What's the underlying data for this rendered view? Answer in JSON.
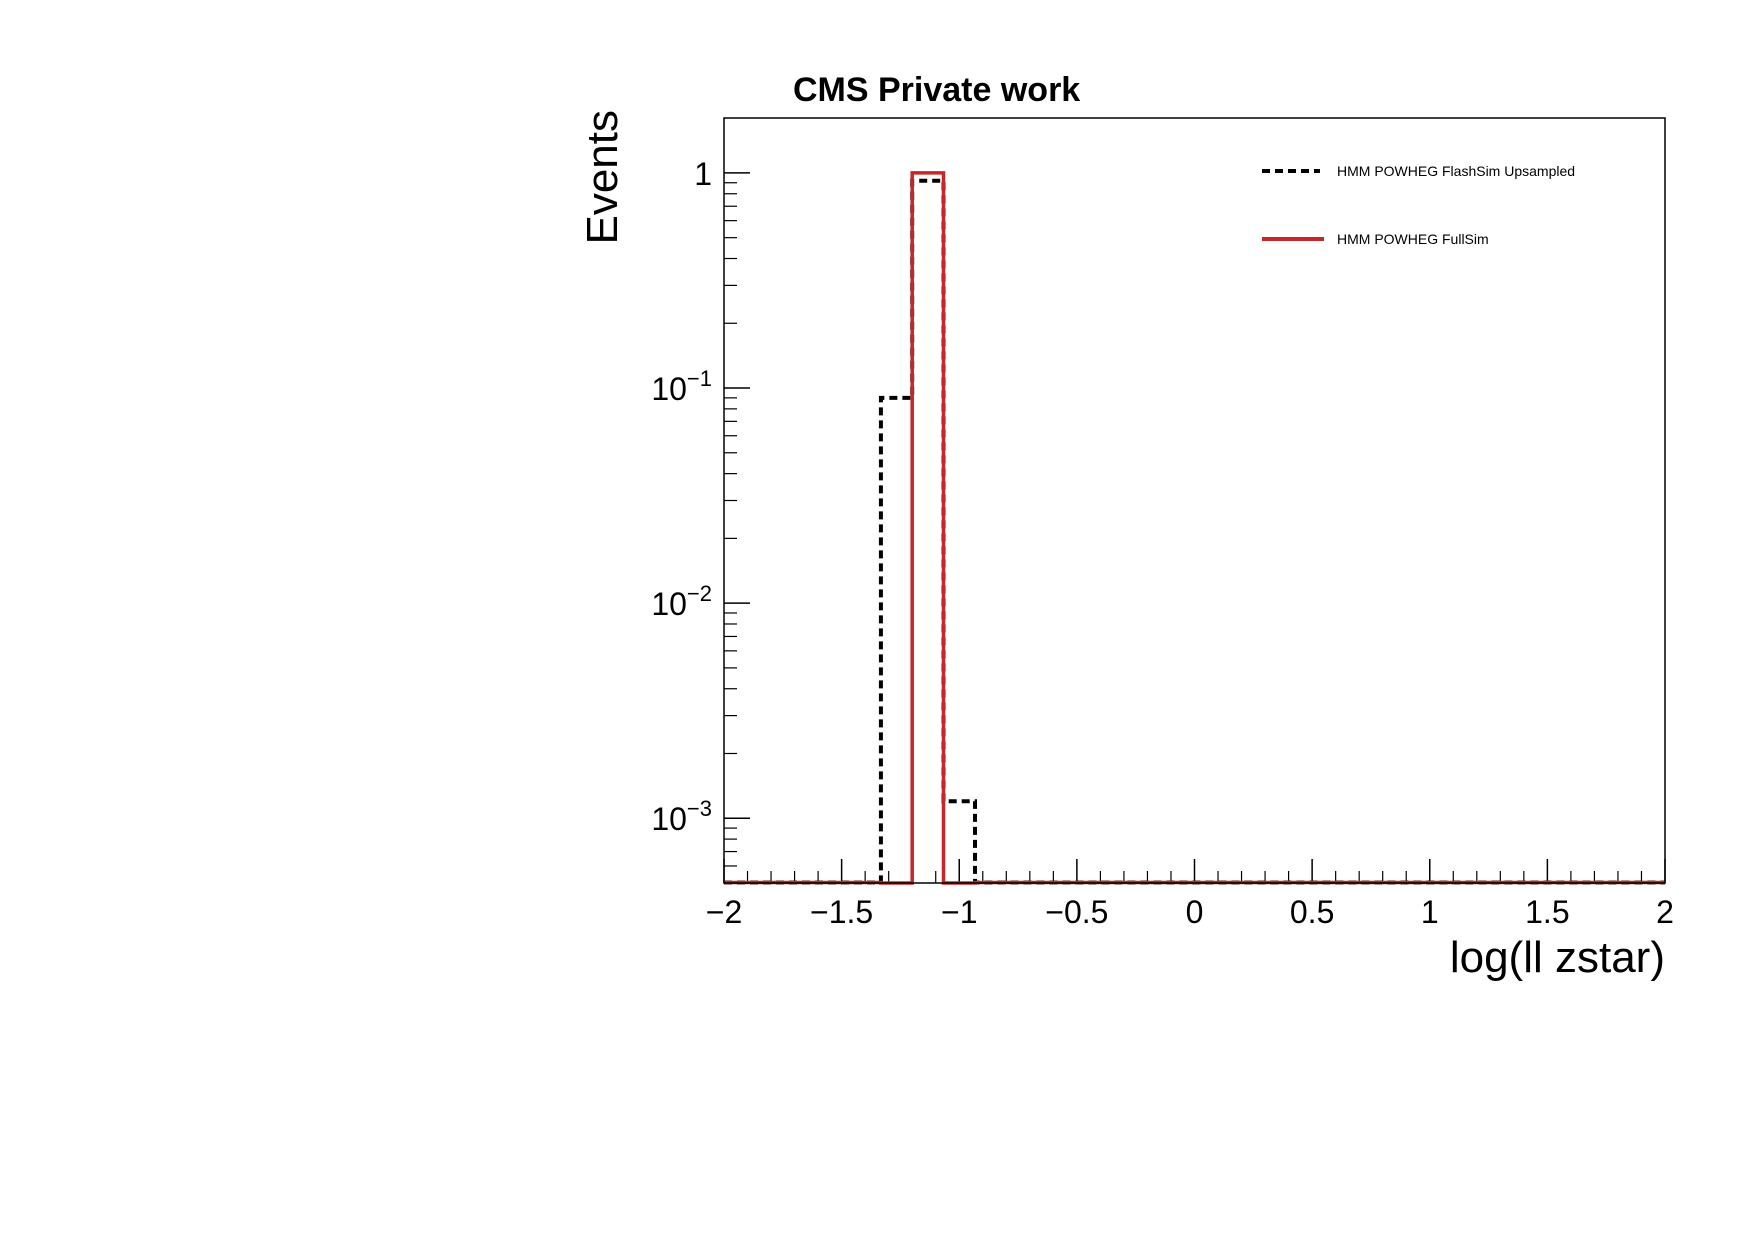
{
  "chart_data": {
    "type": "histogram-step",
    "title": "CMS Private work",
    "xlabel": "log(ll zstar)",
    "ylabel": "Events",
    "xlim": [
      -2,
      2
    ],
    "ylim": [
      0.0005,
      1.8
    ],
    "yscale": "log",
    "x_ticks": [
      {
        "value": -2,
        "label": "−2"
      },
      {
        "value": -1.5,
        "label": "−1.5"
      },
      {
        "value": -1,
        "label": "−1"
      },
      {
        "value": -0.5,
        "label": "−0.5"
      },
      {
        "value": 0,
        "label": "0"
      },
      {
        "value": 0.5,
        "label": "0.5"
      },
      {
        "value": 1,
        "label": "1"
      },
      {
        "value": 1.5,
        "label": "1.5"
      },
      {
        "value": 2,
        "label": "2"
      }
    ],
    "y_ticks": [
      {
        "value": 1,
        "base": "1",
        "exp": ""
      },
      {
        "value": 0.1,
        "base": "10",
        "exp": "−1"
      },
      {
        "value": 0.01,
        "base": "10",
        "exp": "−2"
      },
      {
        "value": 0.001,
        "base": "10",
        "exp": "−3"
      }
    ],
    "bin_edges": [
      -1.333,
      -1.2,
      -1.067,
      -0.933
    ],
    "series": [
      {
        "name": "HMM POWHEG FlashSim Upsampled",
        "color": "#000000",
        "style": "dashed",
        "values": [
          0.09,
          0.92,
          0.0012
        ]
      },
      {
        "name": "HMM POWHEG FullSim",
        "color": "#c62828",
        "style": "solid",
        "values": [
          0,
          1.0,
          0
        ]
      }
    ],
    "legend_position": "top-right",
    "grid": false
  }
}
